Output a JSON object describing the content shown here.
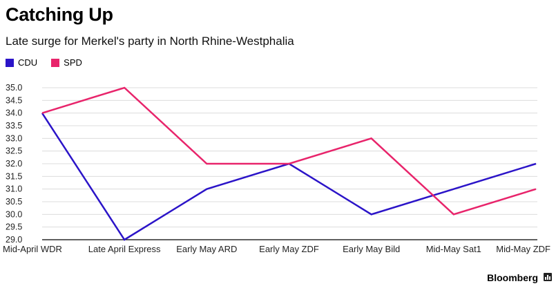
{
  "chart_data": {
    "type": "line",
    "title": "Catching Up",
    "subtitle": "Late surge for Merkel's party in North Rhine-Westphalia",
    "categories": [
      "Mid-April WDR",
      "Late April Express",
      "Early May ARD",
      "Early May ZDF",
      "Early May Bild",
      "Mid-May Sat1",
      "Mid-May ZDF"
    ],
    "series": [
      {
        "name": "CDU",
        "color": "#2b14c8",
        "values": [
          34.0,
          29.0,
          31.0,
          32.0,
          30.0,
          31.0,
          32.0
        ]
      },
      {
        "name": "SPD",
        "color": "#e8246b",
        "values": [
          34.0,
          35.0,
          32.0,
          32.0,
          33.0,
          30.0,
          31.0
        ]
      }
    ],
    "ylim": [
      29.0,
      35.0
    ],
    "yticks": [
      "29.0",
      "29.5",
      "30.0",
      "30.5",
      "31.0",
      "31.5",
      "32.0",
      "32.5",
      "33.0",
      "33.5",
      "34.0",
      "34.5",
      "35.0"
    ],
    "grid": true,
    "legend": "top-left",
    "xlabel": "",
    "ylabel": ""
  },
  "footer": {
    "source": "Bloomberg"
  }
}
